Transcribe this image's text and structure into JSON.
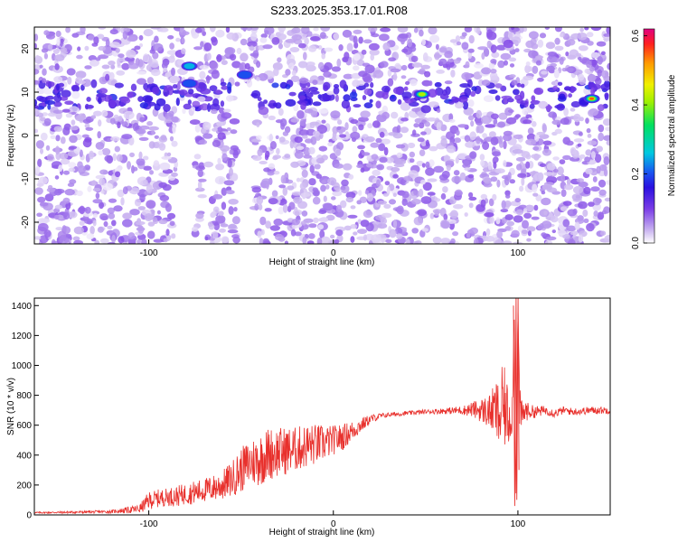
{
  "title": "S233.2025.353.17.01.R08",
  "chart_data": [
    {
      "type": "heatmap",
      "xlabel": "Height of straight line (km)",
      "ylabel": "Frequency (Hz)",
      "xlim": [
        -162,
        150
      ],
      "ylim": [
        -25,
        25
      ],
      "xticks": [
        -100,
        0,
        100
      ],
      "yticks": [
        -20,
        -10,
        0,
        10,
        20
      ],
      "xtick_labels": [
        "-100",
        "0",
        "100"
      ],
      "ytick_labels": [
        "-20",
        "-10",
        "0",
        "10",
        "20"
      ],
      "colorbar": {
        "label": "Normalized spectral amplitude",
        "range": [
          0.0,
          0.62
        ],
        "ticks": [
          0.0,
          0.2,
          0.4,
          0.6
        ],
        "tick_labels": [
          "0.0",
          "0.2",
          "0.4",
          "0.6"
        ]
      },
      "features": [
        {
          "name": "horizontal band",
          "x_range": [
            -162,
            150
          ],
          "freq_hz": 9,
          "amplitude": 0.1
        },
        {
          "name": "bright blob",
          "x": -78,
          "freq_hz": 16,
          "amplitude": 0.25
        },
        {
          "name": "bright blob",
          "x": -78,
          "freq_hz": 12,
          "amplitude": 0.22
        },
        {
          "name": "bright blob",
          "x": -48,
          "freq_hz": 14,
          "amplitude": 0.2
        },
        {
          "name": "bright blob",
          "x": 48,
          "freq_hz": 9.5,
          "amplitude": 0.45
        },
        {
          "name": "bright blob",
          "x": 140,
          "freq_hz": 8.5,
          "amplitude": 0.6
        }
      ],
      "gaps": [
        {
          "x_range": [
            -85,
            -75
          ],
          "freq_range": [
            -25,
            5
          ]
        },
        {
          "x_range": [
            -52,
            -43
          ],
          "freq_range": [
            -25,
            12
          ]
        }
      ]
    },
    {
      "type": "line",
      "xlabel": "Height of straight line (km)",
      "ylabel": "SNR (10 * v/v)",
      "xlim": [
        -162,
        150
      ],
      "ylim": [
        0,
        1450
      ],
      "xticks": [
        -100,
        0,
        100
      ],
      "yticks": [
        0,
        200,
        400,
        600,
        800,
        1000,
        1200,
        1400
      ],
      "xtick_labels": [
        "-100",
        "0",
        "100"
      ],
      "ytick_labels": [
        "0",
        "200",
        "400",
        "600",
        "800",
        "1000",
        "1200",
        "1400"
      ],
      "color": "#e8302c",
      "series": [
        {
          "name": "SNR",
          "x": [
            -162,
            -140,
            -120,
            -105,
            -100,
            -95,
            -90,
            -85,
            -80,
            -75,
            -70,
            -65,
            -60,
            -55,
            -50,
            -45,
            -40,
            -35,
            -30,
            -25,
            -20,
            -15,
            -10,
            -5,
            0,
            5,
            10,
            15,
            20,
            25,
            30,
            40,
            50,
            60,
            70,
            75,
            80,
            85,
            88,
            90,
            92,
            95,
            97,
            98,
            99,
            100,
            101,
            102,
            104,
            106,
            110,
            115,
            120,
            125,
            130,
            140,
            150
          ],
          "values": [
            15,
            18,
            22,
            40,
            95,
            110,
            120,
            125,
            140,
            150,
            165,
            180,
            200,
            240,
            300,
            350,
            370,
            410,
            420,
            430,
            440,
            460,
            470,
            480,
            500,
            520,
            560,
            600,
            640,
            660,
            670,
            680,
            690,
            695,
            700,
            705,
            700,
            690,
            700,
            650,
            730,
            650,
            700,
            1400,
            100,
            1400,
            700,
            650,
            700,
            690,
            690,
            700,
            680,
            700,
            690,
            700,
            700
          ],
          "amplitude": [
            5,
            8,
            10,
            30,
            60,
            60,
            60,
            70,
            70,
            80,
            80,
            90,
            100,
            120,
            150,
            160,
            180,
            180,
            170,
            160,
            150,
            150,
            140,
            120,
            100,
            90,
            70,
            50,
            30,
            20,
            15,
            15,
            15,
            20,
            30,
            50,
            80,
            120,
            200,
            250,
            300,
            200,
            150,
            0,
            0,
            0,
            150,
            120,
            80,
            50,
            40,
            30,
            30,
            25,
            25,
            25,
            25
          ]
        }
      ]
    }
  ]
}
